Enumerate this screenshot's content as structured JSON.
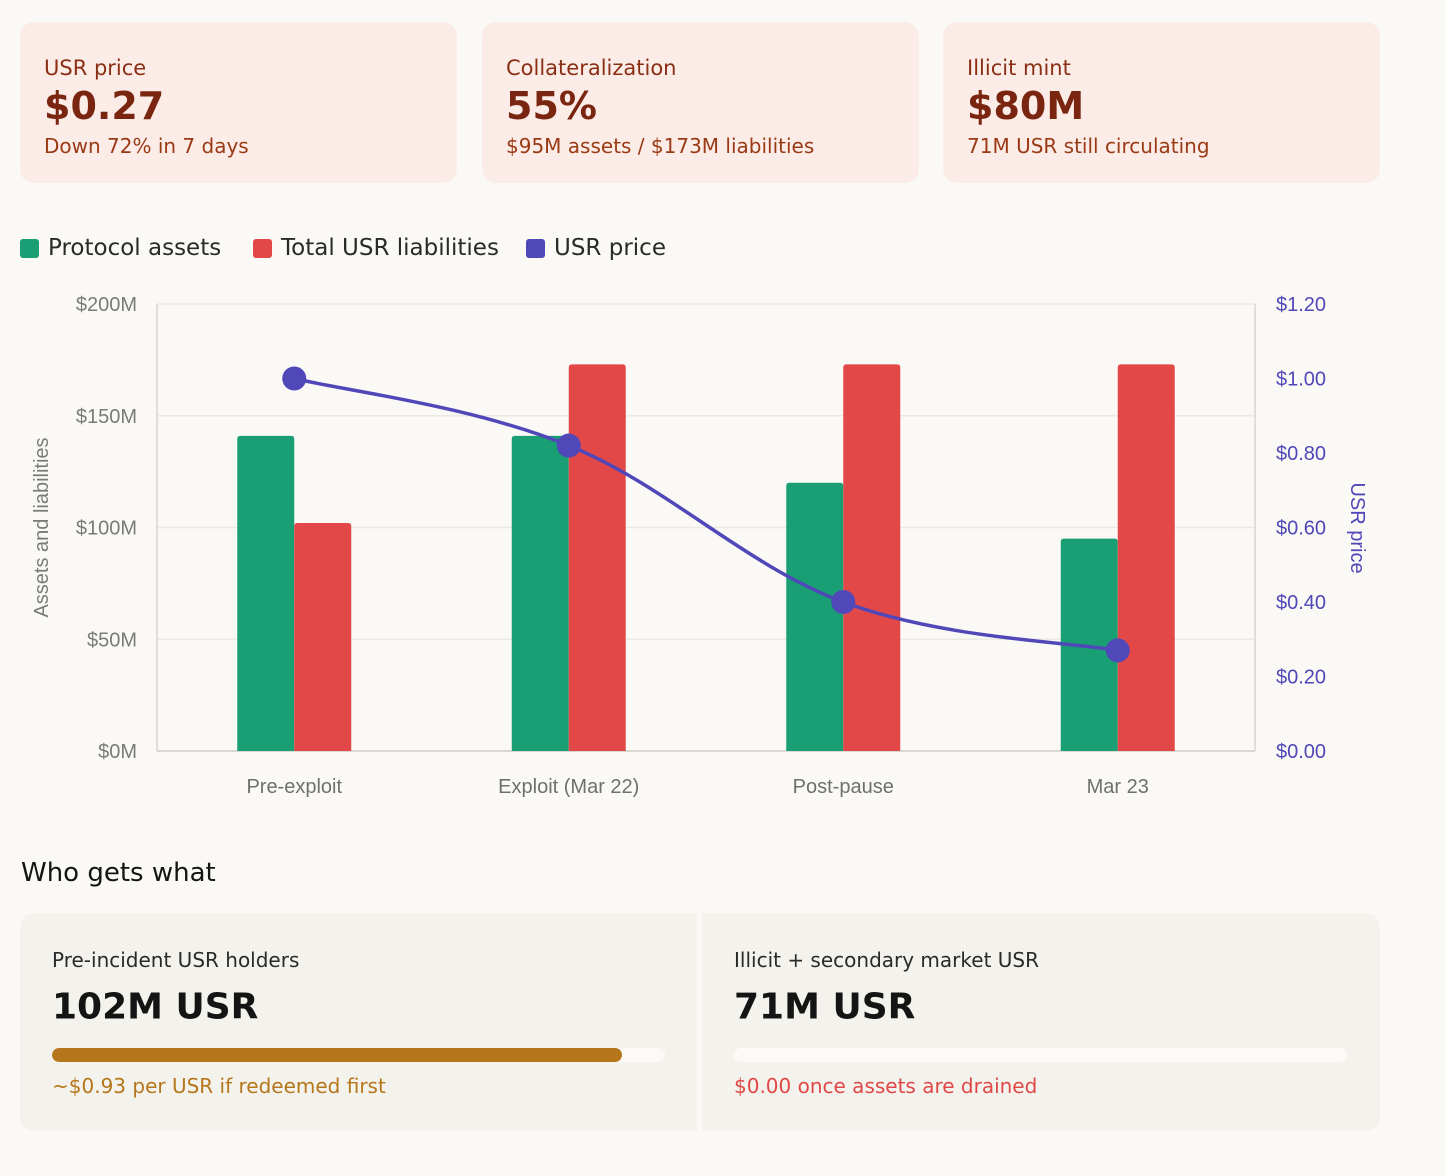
{
  "cards": [
    {
      "label": "USR price",
      "value": "$0.27",
      "sub": "Down 72% in 7 days"
    },
    {
      "label": "Collateralization",
      "value": "55%",
      "sub": "$95M assets / $173M liabilities"
    },
    {
      "label": "Illicit mint",
      "value": "$80M",
      "sub": "71M USR still circulating"
    }
  ],
  "legend": [
    {
      "label": "Protocol assets",
      "color": "#1a9e73"
    },
    {
      "label": "Total USR liabilities",
      "color": "#e24848"
    },
    {
      "label": "USR price",
      "color": "#5047b9"
    }
  ],
  "chart_data": {
    "type": "bar",
    "categories": [
      "Pre-exploit",
      "Exploit (Mar 22)",
      "Post-pause",
      "Mar 23"
    ],
    "series": [
      {
        "name": "Protocol assets",
        "color": "#1a9e73",
        "axis": "left",
        "values": [
          141,
          141,
          120,
          95
        ]
      },
      {
        "name": "Total USR liabilities",
        "color": "#e24848",
        "axis": "left",
        "values": [
          102,
          173,
          173,
          173
        ]
      },
      {
        "name": "USR price",
        "color": "#5047b9",
        "axis": "right",
        "type": "line",
        "values": [
          1.0,
          0.82,
          0.4,
          0.27
        ]
      }
    ],
    "ylabel": "Assets and liabilities",
    "y2label": "USR price",
    "ylim": [
      0,
      200
    ],
    "y2lim": [
      0,
      1.2
    ],
    "yticks": [
      "$0M",
      "$50M",
      "$100M",
      "$150M",
      "$200M"
    ],
    "y2ticks": [
      "$0.00",
      "$0.20",
      "$0.40",
      "$0.60",
      "$0.80",
      "$1.00",
      "$1.20"
    ],
    "grid": true
  },
  "section": {
    "title": "Who gets what"
  },
  "panels": [
    {
      "label": "Pre-incident USR holders",
      "value": "102M USR",
      "progress": 0.93,
      "bar_color": "#b5761c",
      "note": "~$0.93 per USR if redeemed first",
      "note_color": "#b5761c"
    },
    {
      "label": "Illicit + secondary market USR",
      "value": "71M USR",
      "progress": 0.0,
      "bar_color": "#e24848",
      "note": "$0.00 once assets are drained",
      "note_color": "#e04848"
    }
  ]
}
